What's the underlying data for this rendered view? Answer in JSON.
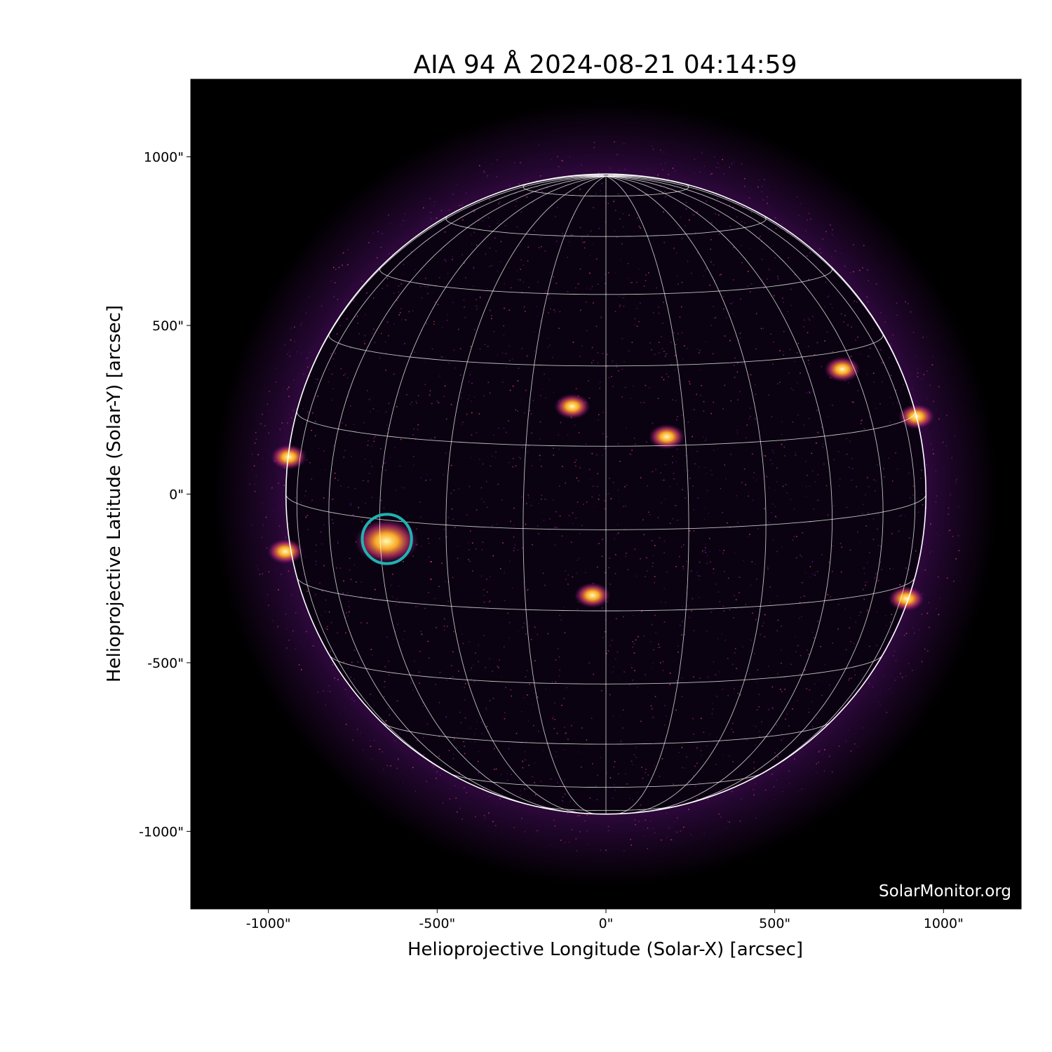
{
  "chart_data": {
    "type": "image",
    "title": "AIA 94 Å 2024-08-21 04:14:59",
    "xlabel": "Helioprojective Longitude (Solar-X) [arcsec]",
    "ylabel": "Helioprojective Latitude (Solar-Y) [arcsec]",
    "xlim": [
      -1230,
      1230
    ],
    "ylim": [
      -1230,
      1230
    ],
    "xticks": [
      -1000,
      -500,
      0,
      500,
      1000
    ],
    "yticks": [
      -1000,
      -500,
      0,
      500,
      1000
    ],
    "xtick_labels": [
      "-1000\"",
      "-500\"",
      "0\"",
      "500\"",
      "1000\""
    ],
    "ytick_labels": [
      "-1000\"",
      "-500\"",
      "0\"",
      "500\"",
      "1000\""
    ],
    "colormap": "inferno",
    "background": "#000000",
    "solar_radius_arcsec": 948,
    "grid": {
      "spacing_deg": 15,
      "color": "#ffffff",
      "b0_deg": 6.4
    },
    "bright_regions": [
      {
        "x": -650,
        "y": -140
      },
      {
        "x": -40,
        "y": -300
      },
      {
        "x": 180,
        "y": 170
      },
      {
        "x": -100,
        "y": 260
      },
      {
        "x": 890,
        "y": -310
      },
      {
        "x": 920,
        "y": 230
      },
      {
        "x": -950,
        "y": -170
      },
      {
        "x": -940,
        "y": 110
      },
      {
        "x": 700,
        "y": 370
      }
    ],
    "annotations": [
      {
        "type": "circle",
        "x": -649,
        "y": -133,
        "radius_arcsec": 73,
        "color": "#20b2b2"
      }
    ],
    "watermark": "SolarMonitor.org"
  }
}
